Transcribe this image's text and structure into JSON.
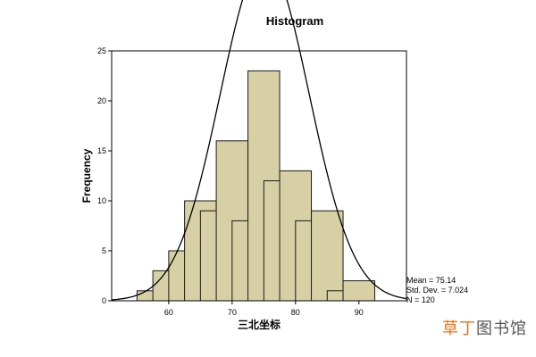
{
  "chart_data": {
    "type": "bar",
    "subtype": "histogram",
    "title": "Histogram",
    "xlabel": "三北坐标",
    "ylabel": "Frequency",
    "bin_width": 5,
    "bins": [
      {
        "x": 55,
        "y": 0
      },
      {
        "x": 57.5,
        "y": 1
      },
      {
        "x": 60,
        "y": 3
      },
      {
        "x": 62.5,
        "y": 5
      },
      {
        "x": 65,
        "y": 10
      },
      {
        "x": 67.5,
        "y": 9
      },
      {
        "x": 70,
        "y": 16
      },
      {
        "x": 72.5,
        "y": 8
      },
      {
        "x": 75,
        "y": 23
      },
      {
        "x": 77.5,
        "y": 12
      },
      {
        "x": 80,
        "y": 13
      },
      {
        "x": 82.5,
        "y": 8
      },
      {
        "x": 85,
        "y": 9
      },
      {
        "x": 87.5,
        "y": 1
      },
      {
        "x": 90,
        "y": 2
      }
    ],
    "xlim": [
      51,
      97.5
    ],
    "ylim": [
      0,
      25
    ],
    "xticks": [
      60,
      70,
      80,
      90
    ],
    "yticks": [
      0,
      5,
      10,
      15,
      20,
      25
    ],
    "normal_curve": {
      "mean": 75.14,
      "std": 7.024
    },
    "grid": false,
    "stats": {
      "mean_label": "Mean = 75.14",
      "std_label": "Std. Dev. = 7.024",
      "n_label": "N = 120"
    },
    "colors": {
      "bar_fill": "#d6d0a4",
      "bar_stroke": "#1a1a1a",
      "curve": "#000000"
    }
  },
  "watermark": {
    "accent": "草丁",
    "rest": "图书馆"
  }
}
